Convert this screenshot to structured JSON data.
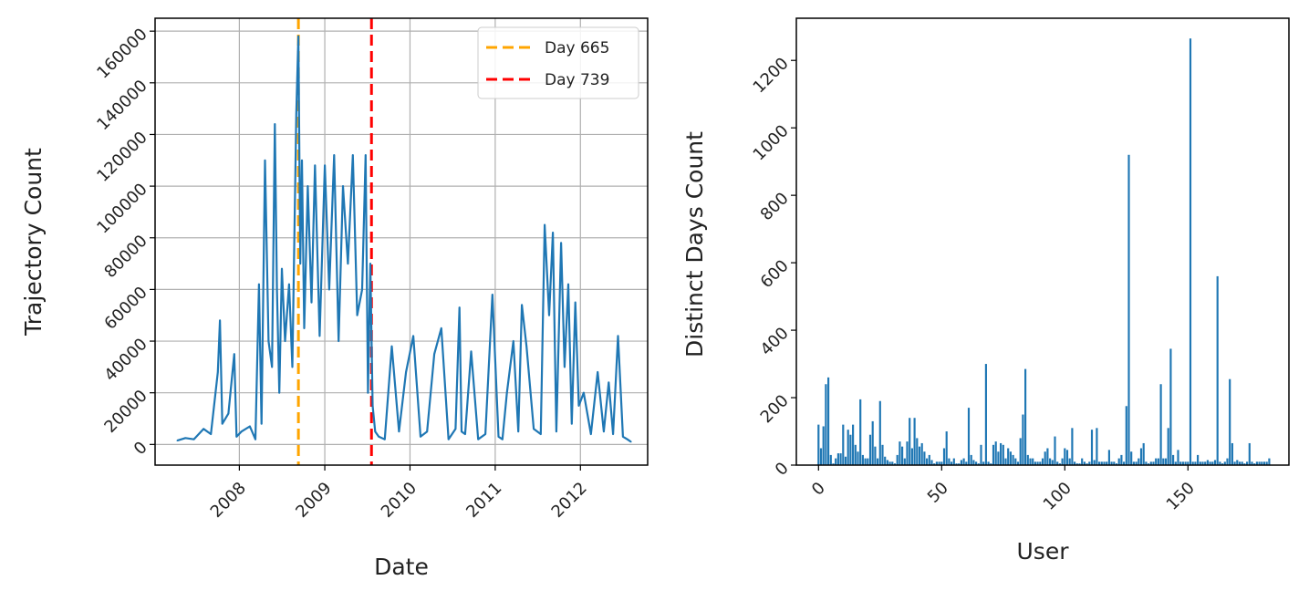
{
  "chart_data": [
    {
      "type": "line",
      "xlabel": "Date",
      "ylabel": "Trajectory Count",
      "x_ticks": [
        "2008",
        "2009",
        "2010",
        "2011",
        "2012"
      ],
      "y_ticks": [
        "0",
        "20000",
        "40000",
        "60000",
        "80000",
        "100000",
        "120000",
        "140000",
        "160000"
      ],
      "xlim": [
        "2007-01-05",
        "2012-10-15"
      ],
      "ylim": [
        -8000,
        165000
      ],
      "grid": true,
      "legend_position": "upper-right",
      "series": [
        {
          "color": "#1f77b4",
          "x": [
            "2007-04-10",
            "2007-05-15",
            "2007-06-20",
            "2007-08-01",
            "2007-09-01",
            "2007-10-01",
            "2007-10-10",
            "2007-10-20",
            "2007-11-15",
            "2007-12-10",
            "2007-12-20",
            "2008-01-10",
            "2008-02-15",
            "2008-03-10",
            "2008-03-25",
            "2008-04-05",
            "2008-04-20",
            "2008-05-05",
            "2008-05-20",
            "2008-06-01",
            "2008-06-10",
            "2008-06-20",
            "2008-07-01",
            "2008-07-15",
            "2008-08-01",
            "2008-08-15",
            "2008-09-01",
            "2008-09-10",
            "2008-09-18",
            "2008-09-25",
            "2008-10-05",
            "2008-10-20",
            "2008-11-05",
            "2008-11-20",
            "2008-12-10",
            "2009-01-01",
            "2009-01-20",
            "2009-02-10",
            "2009-03-01",
            "2009-03-20",
            "2009-04-10",
            "2009-05-01",
            "2009-05-20",
            "2009-06-10",
            "2009-06-25",
            "2009-07-05",
            "2009-07-15",
            "2009-07-25",
            "2009-08-05",
            "2009-08-20",
            "2009-09-15",
            "2009-10-15",
            "2009-11-15",
            "2009-12-15",
            "2010-01-15",
            "2010-02-15",
            "2010-03-15",
            "2010-04-15",
            "2010-05-15",
            "2010-06-15",
            "2010-07-15",
            "2010-08-01",
            "2010-08-10",
            "2010-08-25",
            "2010-09-20",
            "2010-10-20",
            "2010-11-20",
            "2010-12-20",
            "2011-01-15",
            "2011-02-01",
            "2011-02-20",
            "2011-03-20",
            "2011-04-10",
            "2011-04-25",
            "2011-05-15",
            "2011-06-15",
            "2011-07-15",
            "2011-08-01",
            "2011-08-20",
            "2011-09-05",
            "2011-09-20",
            "2011-10-10",
            "2011-10-25",
            "2011-11-10",
            "2011-11-25",
            "2011-12-10",
            "2011-12-25",
            "2012-01-15",
            "2012-02-15",
            "2012-03-15",
            "2012-04-10",
            "2012-05-01",
            "2012-05-20",
            "2012-06-10",
            "2012-07-01",
            "2012-07-20",
            "2012-08-05"
          ],
          "y": [
            1500,
            2500,
            2000,
            6000,
            4000,
            28000,
            48000,
            8000,
            12000,
            35000,
            3000,
            5000,
            7000,
            2000,
            62000,
            8000,
            110000,
            40000,
            30000,
            124000,
            60000,
            20000,
            68000,
            40000,
            62000,
            30000,
            128000,
            158000,
            70000,
            110000,
            45000,
            100000,
            55000,
            108000,
            42000,
            108000,
            60000,
            112000,
            40000,
            100000,
            70000,
            112000,
            50000,
            60000,
            112000,
            20000,
            70000,
            15000,
            5000,
            3000,
            2000,
            38000,
            5000,
            28000,
            42000,
            3000,
            5000,
            35000,
            45000,
            2000,
            6000,
            53000,
            5000,
            4000,
            36000,
            2000,
            4000,
            58000,
            3000,
            2000,
            20000,
            40000,
            5000,
            54000,
            38000,
            6000,
            4000,
            85000,
            50000,
            82000,
            5000,
            78000,
            30000,
            62000,
            8000,
            55000,
            15000,
            20000,
            4000,
            28000,
            5000,
            24000,
            4000,
            42000,
            3000,
            2000,
            1000
          ]
        }
      ],
      "vlines": [
        {
          "label": "Day 665",
          "x": "2008-09-10",
          "color": "#ffa500"
        },
        {
          "label": "Day 739",
          "x": "2009-07-20",
          "color": "#ff0000"
        }
      ]
    },
    {
      "type": "bar",
      "xlabel": "User",
      "ylabel": "Distinct Days Count",
      "x_ticks": [
        "0",
        "50",
        "100",
        "150"
      ],
      "y_ticks": [
        "0",
        "200",
        "400",
        "600",
        "800",
        "1000",
        "1200"
      ],
      "xlim": [
        -9,
        191
      ],
      "ylim": [
        0,
        1325
      ],
      "color": "#1f77b4",
      "values": [
        120,
        50,
        115,
        240,
        260,
        30,
        5,
        20,
        35,
        35,
        120,
        25,
        105,
        90,
        120,
        60,
        40,
        195,
        30,
        20,
        20,
        90,
        130,
        55,
        20,
        190,
        60,
        25,
        15,
        10,
        10,
        5,
        30,
        70,
        55,
        20,
        70,
        140,
        50,
        140,
        80,
        55,
        65,
        40,
        20,
        30,
        15,
        5,
        10,
        10,
        10,
        50,
        100,
        20,
        10,
        20,
        5,
        5,
        15,
        20,
        10,
        170,
        30,
        15,
        10,
        5,
        60,
        10,
        300,
        10,
        5,
        60,
        70,
        40,
        65,
        60,
        20,
        50,
        40,
        30,
        20,
        10,
        80,
        150,
        285,
        30,
        20,
        20,
        10,
        10,
        10,
        20,
        40,
        50,
        20,
        15,
        85,
        10,
        5,
        20,
        50,
        45,
        20,
        110,
        10,
        5,
        5,
        20,
        10,
        5,
        10,
        105,
        15,
        110,
        10,
        10,
        10,
        10,
        45,
        10,
        10,
        5,
        20,
        30,
        10,
        175,
        920,
        40,
        10,
        10,
        20,
        50,
        65,
        10,
        5,
        10,
        10,
        20,
        20,
        240,
        20,
        20,
        110,
        345,
        30,
        10,
        45,
        10,
        10,
        10,
        10,
        1265,
        10,
        10,
        30,
        10,
        10,
        10,
        15,
        10,
        10,
        15,
        560,
        10,
        5,
        10,
        20,
        255,
        65,
        10,
        15,
        10,
        10,
        5,
        10,
        65,
        10,
        5,
        10,
        10,
        10,
        10,
        10,
        20
      ],
      "grid": false
    }
  ]
}
